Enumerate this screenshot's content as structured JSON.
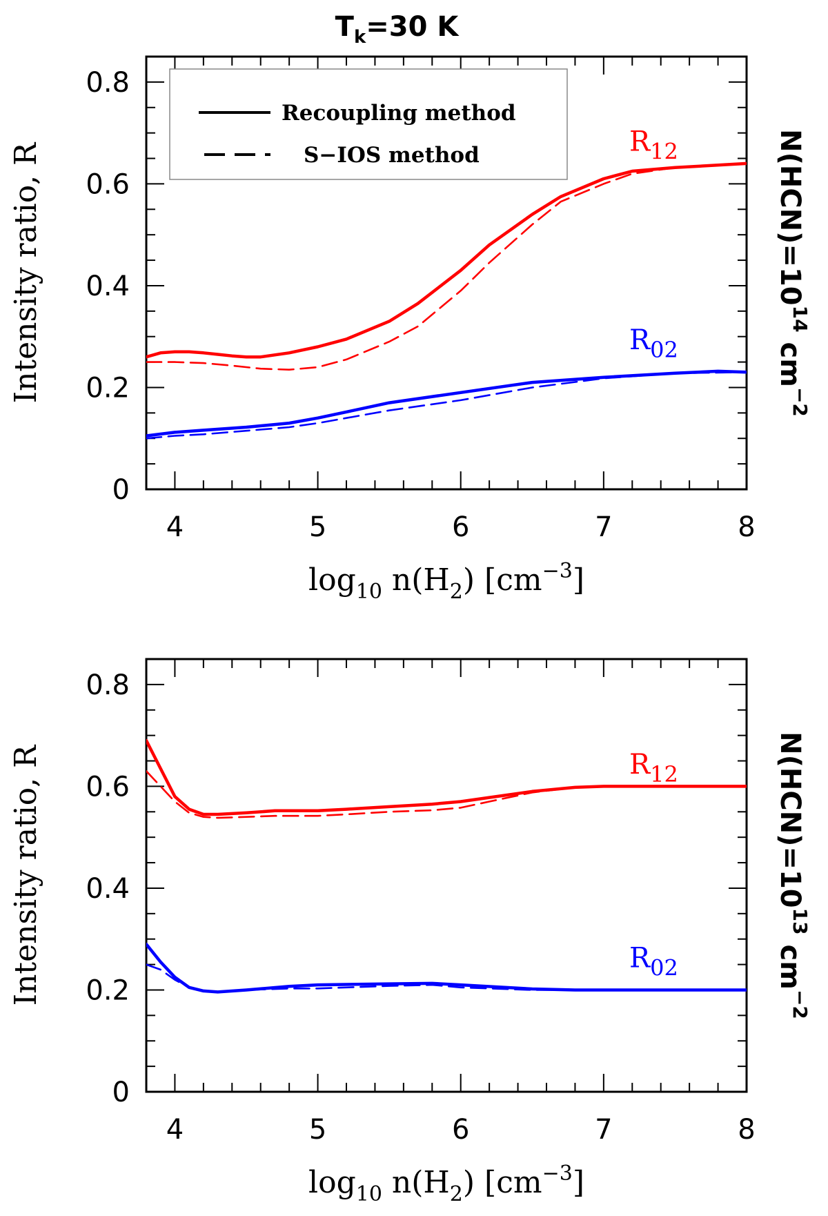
{
  "title": {
    "main": "T",
    "sub": "k",
    "rest": "=30 K"
  },
  "colors": {
    "r12": "#ff0000",
    "r02": "#0000ff",
    "axis": "#000000"
  },
  "legend": {
    "solid_label": "Recoupling method",
    "dashed_label": "S−IOS method"
  },
  "chart_data": [
    {
      "type": "line",
      "panel": "top",
      "ylabel": "Intensity ratio, R",
      "xlabel": {
        "pre": "log",
        "sub": "10",
        "mid": " n(H",
        "sub2": "2",
        "post": ") [cm",
        "sup": "−3",
        "end": "]"
      },
      "right_label": {
        "pre": "N(HCN)=10",
        "sup": "14",
        "mid": " cm",
        "sup2": "−2"
      },
      "xlim": [
        3.8,
        8
      ],
      "ylim": [
        0,
        0.85
      ],
      "xticks": [
        "4",
        "5",
        "6",
        "7",
        "8"
      ],
      "yticks": [
        "0",
        "0.2",
        "0.4",
        "0.6",
        "0.8"
      ],
      "series_labels": {
        "r12": {
          "main": "R",
          "sub": "12"
        },
        "r02": {
          "main": "R",
          "sub": "02"
        }
      },
      "series": [
        {
          "name": "R12 Recoupling",
          "color": "r12",
          "style": "solid",
          "x": [
            3.8,
            3.9,
            4.0,
            4.1,
            4.2,
            4.3,
            4.4,
            4.5,
            4.6,
            4.8,
            5.0,
            5.2,
            5.5,
            5.7,
            6.0,
            6.2,
            6.5,
            6.7,
            7.0,
            7.2,
            7.5,
            8.0
          ],
          "y": [
            0.26,
            0.268,
            0.27,
            0.27,
            0.268,
            0.265,
            0.262,
            0.26,
            0.26,
            0.268,
            0.28,
            0.295,
            0.33,
            0.365,
            0.43,
            0.48,
            0.54,
            0.575,
            0.61,
            0.625,
            0.632,
            0.64
          ]
        },
        {
          "name": "R12 S-IOS",
          "color": "r12",
          "style": "dashed",
          "x": [
            3.8,
            4.0,
            4.2,
            4.4,
            4.6,
            4.8,
            5.0,
            5.2,
            5.5,
            5.7,
            6.0,
            6.2,
            6.5,
            6.7,
            7.0,
            7.2,
            7.5,
            8.0
          ],
          "y": [
            0.25,
            0.25,
            0.248,
            0.243,
            0.237,
            0.235,
            0.24,
            0.255,
            0.29,
            0.32,
            0.39,
            0.445,
            0.52,
            0.565,
            0.6,
            0.62,
            0.632,
            0.64
          ]
        },
        {
          "name": "R02 Recoupling",
          "color": "r02",
          "style": "solid",
          "x": [
            3.8,
            4.0,
            4.2,
            4.5,
            4.8,
            5.0,
            5.2,
            5.5,
            6.0,
            6.5,
            7.0,
            7.5,
            7.8,
            8.0
          ],
          "y": [
            0.105,
            0.112,
            0.116,
            0.122,
            0.13,
            0.14,
            0.152,
            0.17,
            0.19,
            0.21,
            0.22,
            0.228,
            0.232,
            0.23
          ]
        },
        {
          "name": "R02 S-IOS",
          "color": "r02",
          "style": "dashed",
          "x": [
            3.8,
            4.0,
            4.2,
            4.5,
            4.8,
            5.0,
            5.2,
            5.5,
            6.0,
            6.5,
            7.0,
            7.5,
            8.0
          ],
          "y": [
            0.1,
            0.105,
            0.108,
            0.115,
            0.122,
            0.13,
            0.14,
            0.155,
            0.175,
            0.2,
            0.218,
            0.228,
            0.23
          ]
        }
      ]
    },
    {
      "type": "line",
      "panel": "bottom",
      "ylabel": "Intensity ratio, R",
      "xlabel": {
        "pre": "log",
        "sub": "10",
        "mid": " n(H",
        "sub2": "2",
        "post": ") [cm",
        "sup": "−3",
        "end": "]"
      },
      "right_label": {
        "pre": "N(HCN)=10",
        "sup": "13",
        "mid": " cm",
        "sup2": "−2"
      },
      "xlim": [
        3.8,
        8
      ],
      "ylim": [
        0,
        0.85
      ],
      "xticks": [
        "4",
        "5",
        "6",
        "7",
        "8"
      ],
      "yticks": [
        "0",
        "0.2",
        "0.4",
        "0.6",
        "0.8"
      ],
      "series_labels": {
        "r12": {
          "main": "R",
          "sub": "12"
        },
        "r02": {
          "main": "R",
          "sub": "02"
        }
      },
      "series": [
        {
          "name": "R12 Recoupling",
          "color": "r12",
          "style": "solid",
          "x": [
            3.8,
            3.9,
            4.0,
            4.1,
            4.2,
            4.3,
            4.5,
            4.7,
            5.0,
            5.2,
            5.5,
            5.8,
            6.0,
            6.2,
            6.5,
            6.8,
            7.0,
            7.3,
            7.6,
            8.0
          ],
          "y": [
            0.69,
            0.635,
            0.58,
            0.555,
            0.545,
            0.545,
            0.548,
            0.552,
            0.552,
            0.555,
            0.56,
            0.565,
            0.57,
            0.578,
            0.59,
            0.598,
            0.6,
            0.6,
            0.6,
            0.6
          ]
        },
        {
          "name": "R12 S-IOS",
          "color": "r12",
          "style": "dashed",
          "x": [
            3.8,
            3.9,
            4.0,
            4.1,
            4.2,
            4.3,
            4.5,
            4.7,
            5.0,
            5.2,
            5.5,
            5.8,
            6.0,
            6.2,
            6.5,
            6.8,
            7.0,
            7.3,
            7.6,
            8.0
          ],
          "y": [
            0.63,
            0.6,
            0.57,
            0.548,
            0.54,
            0.538,
            0.54,
            0.542,
            0.542,
            0.545,
            0.55,
            0.553,
            0.558,
            0.57,
            0.588,
            0.598,
            0.6,
            0.6,
            0.6,
            0.6
          ]
        },
        {
          "name": "R02 Recoupling",
          "color": "r02",
          "style": "solid",
          "x": [
            3.8,
            3.9,
            4.0,
            4.1,
            4.2,
            4.3,
            4.5,
            4.8,
            5.0,
            5.5,
            5.8,
            6.0,
            6.5,
            6.8,
            7.0,
            7.5,
            8.0
          ],
          "y": [
            0.29,
            0.255,
            0.225,
            0.205,
            0.198,
            0.196,
            0.2,
            0.207,
            0.21,
            0.212,
            0.213,
            0.21,
            0.202,
            0.2,
            0.2,
            0.2,
            0.2
          ]
        },
        {
          "name": "R02 S-IOS",
          "color": "r02",
          "style": "dashed",
          "x": [
            3.8,
            3.9,
            4.0,
            4.1,
            4.2,
            4.3,
            4.5,
            4.8,
            5.0,
            5.5,
            5.8,
            6.0,
            6.5,
            6.8,
            7.0,
            7.5,
            8.0
          ],
          "y": [
            0.25,
            0.24,
            0.22,
            0.205,
            0.198,
            0.196,
            0.2,
            0.203,
            0.203,
            0.208,
            0.21,
            0.205,
            0.2,
            0.2,
            0.2,
            0.2,
            0.2
          ]
        }
      ]
    }
  ]
}
